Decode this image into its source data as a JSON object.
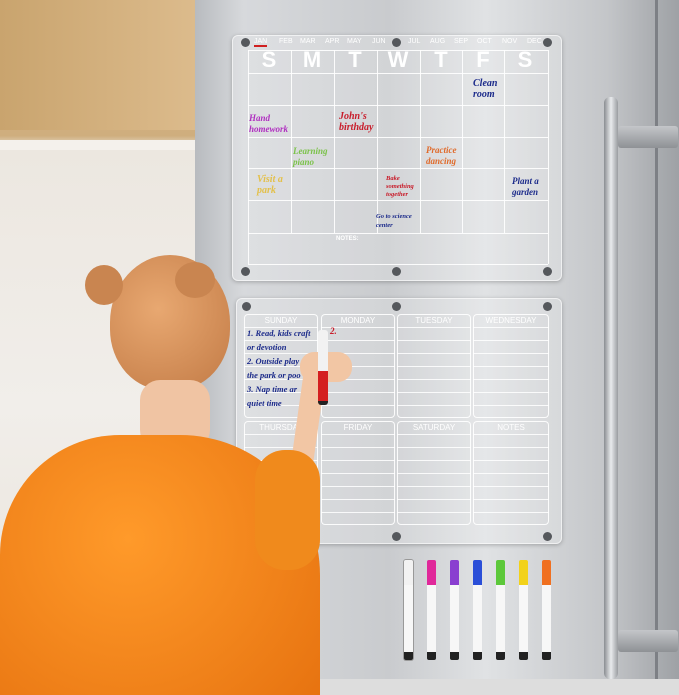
{
  "monthly_board": {
    "months": [
      "JAN",
      "FEB",
      "MAR",
      "APR",
      "MAY",
      "JUN",
      "JUL",
      "AUG",
      "SEP",
      "OCT",
      "NOV",
      "DEC"
    ],
    "selected_month": "JAN",
    "days": [
      "S",
      "M",
      "T",
      "W",
      "T",
      "F",
      "S"
    ],
    "events": [
      {
        "text": "Clean room",
        "color": "#1b2a8a"
      },
      {
        "text": "Hand homework",
        "color": "#b02fc0"
      },
      {
        "text": "John's birthday",
        "color": "#c81c2a"
      },
      {
        "text": "Learning piano",
        "color": "#7bc24a"
      },
      {
        "text": "Practice dancing",
        "color": "#e06a2a"
      },
      {
        "text": "Visit a park",
        "color": "#e3c04a"
      },
      {
        "text": "Bake something together",
        "color": "#c81c2a"
      },
      {
        "text": "Plant a garden",
        "color": "#1b2a8a"
      },
      {
        "text": "Go to science center",
        "color": "#1b2a8a"
      }
    ],
    "notes_label": "NOTES:"
  },
  "weekly_board": {
    "days": [
      "SUNDAY",
      "MONDAY",
      "TUESDAY",
      "WEDNESDAY",
      "THURSDAY",
      "FRIDAY",
      "SATURDAY",
      "NOTES"
    ],
    "sunday_lines": [
      "1. Read, kids craft",
      "or devotion",
      "2. Outside play at",
      "the park or poo",
      "3. Nap time ar",
      "quiet time"
    ],
    "monday_text": "2."
  },
  "markers": {
    "colors": [
      "#f2f2f2",
      "#e0289a",
      "#8a3fd0",
      "#2b4fd8",
      "#5cc83a",
      "#f2d21a",
      "#f07020"
    ]
  }
}
